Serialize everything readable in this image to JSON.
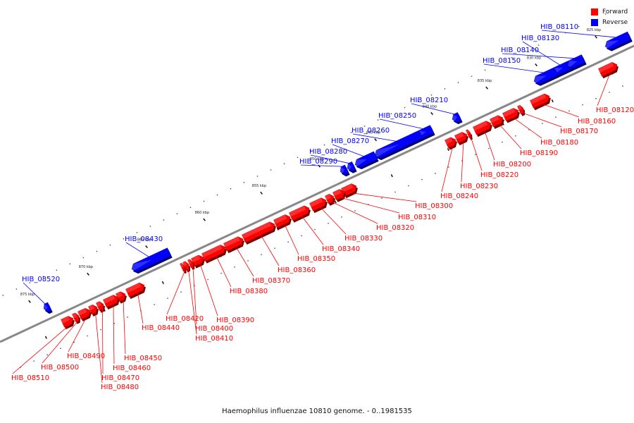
{
  "caption": "Haemophilus influenzae 10810 genome. - 0..1981535",
  "legend": [
    {
      "label": "Forward",
      "color": "#ff0000"
    },
    {
      "label": "Reverse",
      "color": "#0000ff"
    }
  ],
  "colors": {
    "forward": "#ff0000",
    "reverse": "#0000ff",
    "backbone": "#888888"
  },
  "tick_labels": [
    "825 kbp",
    "830 kbp",
    "835 kbp",
    "840 kbp",
    "845 kbp",
    "850 kbp",
    "855 kbp",
    "860 kbp",
    "865 kbp",
    "870 kbp",
    "875 kbp"
  ],
  "genes": [
    {
      "id": "HIB_08110",
      "strand": "reverse"
    },
    {
      "id": "HIB_08120",
      "strand": "forward"
    },
    {
      "id": "HIB_08130",
      "strand": "reverse"
    },
    {
      "id": "HIB_08140",
      "strand": "reverse"
    },
    {
      "id": "HIB_08150",
      "strand": "reverse"
    },
    {
      "id": "HIB_08160",
      "strand": "forward"
    },
    {
      "id": "HIB_08170",
      "strand": "forward"
    },
    {
      "id": "HIB_08180",
      "strand": "forward"
    },
    {
      "id": "HIB_08190",
      "strand": "forward"
    },
    {
      "id": "HIB_08200",
      "strand": "forward"
    },
    {
      "id": "HIB_08210",
      "strand": "reverse"
    },
    {
      "id": "HIB_08220",
      "strand": "forward"
    },
    {
      "id": "HIB_08230",
      "strand": "forward"
    },
    {
      "id": "HIB_08240",
      "strand": "forward"
    },
    {
      "id": "HIB_08250",
      "strand": "reverse"
    },
    {
      "id": "HIB_08260",
      "strand": "reverse"
    },
    {
      "id": "HIB_08270",
      "strand": "reverse"
    },
    {
      "id": "HIB_08280",
      "strand": "reverse"
    },
    {
      "id": "HIB_08290",
      "strand": "reverse"
    },
    {
      "id": "HIB_08300",
      "strand": "forward"
    },
    {
      "id": "HIB_08310",
      "strand": "forward"
    },
    {
      "id": "HIB_08320",
      "strand": "forward"
    },
    {
      "id": "HIB_08330",
      "strand": "forward"
    },
    {
      "id": "HIB_08340",
      "strand": "forward"
    },
    {
      "id": "HIB_08350",
      "strand": "forward"
    },
    {
      "id": "HIB_08360",
      "strand": "forward"
    },
    {
      "id": "HIB_08370",
      "strand": "forward"
    },
    {
      "id": "HIB_08380",
      "strand": "forward"
    },
    {
      "id": "HIB_08390",
      "strand": "forward"
    },
    {
      "id": "HIB_08400",
      "strand": "forward"
    },
    {
      "id": "HIB_08410",
      "strand": "forward"
    },
    {
      "id": "HIB_08420",
      "strand": "forward"
    },
    {
      "id": "HIB_08430",
      "strand": "reverse"
    },
    {
      "id": "HIB_08440",
      "strand": "forward"
    },
    {
      "id": "HIB_08450",
      "strand": "forward"
    },
    {
      "id": "HIB_08460",
      "strand": "forward"
    },
    {
      "id": "HIB_08470",
      "strand": "forward"
    },
    {
      "id": "HIB_08480",
      "strand": "forward"
    },
    {
      "id": "HIB_08490",
      "strand": "forward"
    },
    {
      "id": "HIB_08500",
      "strand": "forward"
    },
    {
      "id": "HIB_08510",
      "strand": "forward"
    },
    {
      "id": "HIB_08520",
      "strand": "reverse"
    }
  ]
}
